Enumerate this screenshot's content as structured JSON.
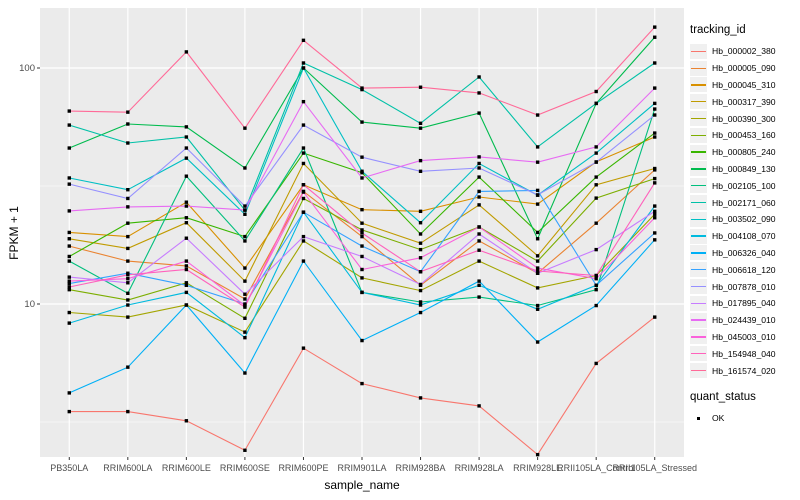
{
  "figure": {
    "background": "#FFFFFF",
    "panel_background": "#EBEBEB",
    "gridline_color": "#FFFFFF",
    "tick_text_color": "#4D4D4D",
    "point_color": "#000000"
  },
  "axes": {
    "x_title": "sample_name",
    "y_title": "FPKM + 1",
    "y_ticks": [
      {
        "value": 100,
        "label": "100"
      },
      {
        "value": 10,
        "label": "10"
      }
    ]
  },
  "legend": {
    "tracking_title": "tracking_id",
    "quant_title": "quant_status",
    "quant_items": [
      {
        "label": "OK",
        "marker": "black-square"
      }
    ]
  },
  "chart_data": {
    "type": "line",
    "x_type": "categorical",
    "y_scale": "log10",
    "ylim": [
      2.2,
      180
    ],
    "y_minor_gridlines": [
      31.62,
      3.162
    ],
    "grid": true,
    "legend_position": "right",
    "title": "",
    "xlabel": "sample_name",
    "ylabel": "FPKM + 1",
    "categories": [
      "PB350LA",
      "RRIM600LA",
      "RRIM600LE",
      "RRIM600SE",
      "RRIM600PE",
      "RRIM901LA",
      "RRIM928BA",
      "RRIM928LA",
      "RRIM928LE",
      "RRII105LA_Control",
      "RRII105LA_Stressed"
    ],
    "series": [
      {
        "name": "Hb_000002_380",
        "color": "#F8766D",
        "values": [
          3.5,
          3.5,
          3.2,
          2.4,
          6.5,
          4.6,
          4.0,
          3.7,
          2.3,
          5.6,
          8.8
        ]
      },
      {
        "name": "Hb_000005_090",
        "color": "#EA8331",
        "values": [
          17.6,
          15.2,
          14.5,
          10.5,
          30.0,
          19.3,
          12.0,
          18.5,
          13.5,
          22.0,
          37.0
        ]
      },
      {
        "name": "Hb_000045_310",
        "color": "#D89000",
        "values": [
          20.1,
          19.3,
          27.0,
          14.2,
          32.0,
          25.1,
          24.7,
          28.4,
          26.5,
          40.0,
          51.0
        ]
      },
      {
        "name": "Hb_000317_390",
        "color": "#C09B00",
        "values": [
          18.9,
          17.2,
          22.1,
          12.5,
          39.4,
          22.0,
          18.1,
          26.3,
          16.0,
          32.0,
          37.5
        ]
      },
      {
        "name": "Hb_000390_300",
        "color": "#A3A500",
        "values": [
          9.2,
          8.8,
          9.9,
          7.6,
          18.5,
          12.9,
          11.4,
          15.2,
          11.7,
          13.2,
          24.0
        ]
      },
      {
        "name": "Hb_000453_160",
        "color": "#7CAE00",
        "values": [
          11.5,
          10.4,
          12.3,
          8.7,
          28.0,
          20.6,
          17.0,
          21.2,
          15.2,
          28.1,
          34.0
        ]
      },
      {
        "name": "Hb_000805_240",
        "color": "#39B600",
        "values": [
          15.9,
          22.0,
          23.2,
          19.3,
          43.6,
          36.0,
          19.8,
          34.5,
          20.1,
          34.5,
          53.0
        ]
      },
      {
        "name": "Hb_000849_130",
        "color": "#00BB4E",
        "values": [
          45.8,
          57.9,
          56.3,
          37.7,
          100.0,
          59.0,
          55.6,
          64.4,
          18.9,
          70.8,
          135.0
        ]
      },
      {
        "name": "Hb_002105_100",
        "color": "#00BF7D",
        "values": [
          15.2,
          11.1,
          34.8,
          18.5,
          45.8,
          11.2,
          10.2,
          10.7,
          9.85,
          11.5,
          67.0
        ]
      },
      {
        "name": "Hb_002171_060",
        "color": "#00C1A7",
        "values": [
          57.3,
          48.1,
          51.0,
          25.0,
          105.0,
          81.0,
          58.3,
          91.6,
          46.3,
          70.8,
          105.0
        ]
      },
      {
        "name": "Hb_003502_090",
        "color": "#00BFC4",
        "values": [
          34.2,
          30.5,
          41.5,
          24.0,
          100.0,
          36.5,
          22.1,
          39.4,
          28.9,
          43.6,
          70.8
        ]
      },
      {
        "name": "Hb_004108_070",
        "color": "#00BADE",
        "values": [
          8.3,
          9.9,
          11.2,
          7.2,
          24.5,
          11.2,
          9.9,
          12.0,
          9.5,
          12.0,
          26.0
        ]
      },
      {
        "name": "Hb_006326_040",
        "color": "#00B0F6",
        "values": [
          4.2,
          5.4,
          9.9,
          5.1,
          15.2,
          7.0,
          9.2,
          12.5,
          6.9,
          9.85,
          18.7
        ]
      },
      {
        "name": "Hb_006618_120",
        "color": "#35A2FF",
        "values": [
          12.2,
          13.5,
          12.0,
          10.0,
          24.5,
          17.6,
          13.7,
          30.0,
          30.3,
          12.0,
          20.0
        ]
      },
      {
        "name": "Hb_007878_010",
        "color": "#9590FF",
        "values": [
          32.2,
          28.0,
          45.8,
          26.0,
          57.3,
          41.9,
          36.5,
          37.7,
          29.0,
          39.9,
          63.2
        ]
      },
      {
        "name": "Hb_017895_040",
        "color": "#C77CFF",
        "values": [
          13.0,
          12.3,
          19.0,
          11.0,
          19.3,
          15.9,
          12.1,
          19.8,
          13.5,
          17.0,
          24.7
        ]
      },
      {
        "name": "Hb_024439_010",
        "color": "#E76BF3",
        "values": [
          24.8,
          25.8,
          26.0,
          25.0,
          72.0,
          34.2,
          40.5,
          42.0,
          39.9,
          46.3,
          82.2
        ]
      },
      {
        "name": "Hb_045003_010",
        "color": "#FA62DB",
        "values": [
          12.5,
          12.8,
          15.2,
          9.85,
          29.8,
          14.0,
          15.7,
          21.2,
          14.2,
          12.8,
          23.2
        ]
      },
      {
        "name": "Hb_154948_040",
        "color": "#FF62BC",
        "values": [
          11.8,
          13.3,
          14.0,
          9.7,
          32.0,
          20.0,
          13.7,
          16.9,
          13.8,
          13.2,
          32.6
        ]
      },
      {
        "name": "Hb_161574_020",
        "color": "#FF6A98",
        "values": [
          65.7,
          65.0,
          117.0,
          55.6,
          131.0,
          82.2,
          82.9,
          78.4,
          63.2,
          79.5,
          149.0
        ]
      }
    ]
  }
}
